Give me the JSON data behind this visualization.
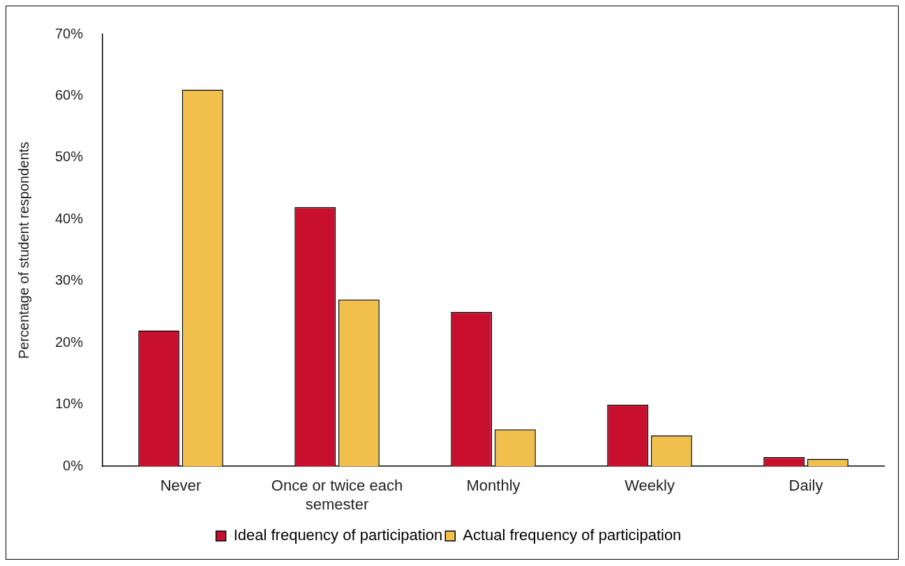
{
  "chart_data": {
    "type": "bar",
    "ylabel": "Percentage of student respondents",
    "categories": [
      "Never",
      "Once or twice each semester",
      "Monthly",
      "Weekly",
      "Daily"
    ],
    "series": [
      {
        "name": "Ideal frequency of participation",
        "color": "#c8102e",
        "values": [
          22,
          42,
          25,
          10,
          1.5
        ]
      },
      {
        "name": "Actual frequency of participation",
        "color": "#f0bf4c",
        "values": [
          61,
          27,
          6,
          5,
          1.2
        ]
      }
    ],
    "ylim": [
      0,
      70
    ],
    "yticks": [
      {
        "value": 0,
        "label": "0%"
      },
      {
        "value": 10,
        "label": "10%"
      },
      {
        "value": 20,
        "label": "20%"
      },
      {
        "value": 30,
        "label": "30%"
      },
      {
        "value": 40,
        "label": "40%"
      },
      {
        "value": 50,
        "label": "50%"
      },
      {
        "value": 60,
        "label": "60%"
      },
      {
        "value": 70,
        "label": "70%"
      }
    ],
    "grid": false,
    "legend": "bottom"
  }
}
